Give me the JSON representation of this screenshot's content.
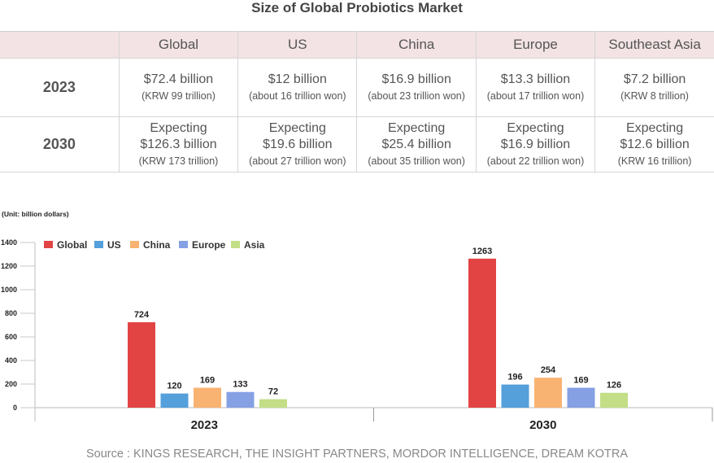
{
  "title": "Size of Global Probiotics Market",
  "table": {
    "columns": [
      "",
      "Global",
      "US",
      "China",
      "Europe",
      "Southeast Asia"
    ],
    "rows": [
      {
        "year": "2023",
        "cells": [
          {
            "prefix": "",
            "main": "$72.4 billion",
            "sub": "(KRW 99 trillion)"
          },
          {
            "prefix": "",
            "main": "$12 billion",
            "sub": "(about 16 trillion won)"
          },
          {
            "prefix": "",
            "main": "$16.9 billion",
            "sub": "(about 23 trillion won)"
          },
          {
            "prefix": "",
            "main": "$13.3 billion",
            "sub": "(about 17 trillion won)"
          },
          {
            "prefix": "",
            "main": "$7.2 billion",
            "sub": "(KRW 8 trillion)"
          }
        ]
      },
      {
        "year": "2030",
        "cells": [
          {
            "prefix": "Expecting",
            "main": "$126.3 billion",
            "sub": "(KRW 173 trillion)"
          },
          {
            "prefix": "Expecting",
            "main": "$19.6 billion",
            "sub": "(about 27 trillion won)"
          },
          {
            "prefix": "Expecting",
            "main": "$25.4 billion",
            "sub": "(about 35 trillion won)"
          },
          {
            "prefix": "Expecting",
            "main": "$16.9 billion",
            "sub": "(about 22 trillion won)"
          },
          {
            "prefix": "Expecting",
            "main": "$12.6 billion",
            "sub": "(KRW 16 trillion)"
          }
        ]
      }
    ]
  },
  "unit_label": "(Unit: billion dollars)",
  "source": "Source : KINGS RESEARCH, THE INSIGHT PARTNERS, MORDOR INTELLIGENCE, DREAM KOTRA",
  "chart_data": {
    "type": "bar",
    "title": "",
    "xlabel": "",
    "ylabel": "billion dollars",
    "categories": [
      "2023",
      "2030"
    ],
    "series": [
      {
        "name": "Global",
        "color": "#e24444",
        "values": [
          724,
          1263
        ]
      },
      {
        "name": "US",
        "color": "#559fdb",
        "values": [
          120,
          196
        ]
      },
      {
        "name": "China",
        "color": "#f8b372",
        "values": [
          169,
          254
        ]
      },
      {
        "name": "Europe",
        "color": "#86a0e4",
        "values": [
          133,
          169
        ]
      },
      {
        "name": "Asia",
        "color": "#c3de86",
        "values": [
          72,
          126
        ]
      }
    ],
    "yticks": [
      0,
      200,
      400,
      600,
      800,
      1000,
      1200,
      1400
    ],
    "ylim": [
      0,
      1400
    ],
    "grid": false,
    "legend": "top-left",
    "data_labels": true
  }
}
